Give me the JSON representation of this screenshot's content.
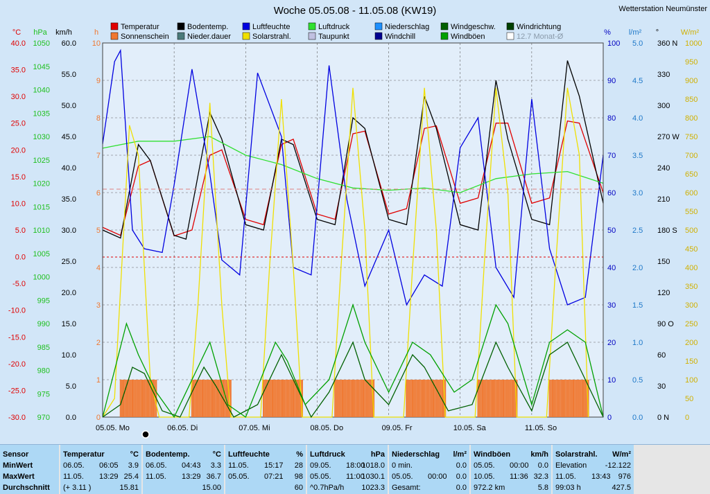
{
  "title": "Woche 05.05.08 - 11.05.08 (KW19)",
  "station": "Wetterstation Neumünster",
  "legend": [
    {
      "label": "Temperatur",
      "color": "#e00000"
    },
    {
      "label": "Sonnenschein",
      "color": "#f07830"
    },
    {
      "label": "Bodentemp.",
      "color": "#000000"
    },
    {
      "label": "Nieder.dauer",
      "color": "#4a7a7a"
    },
    {
      "label": "Luftfeuchte",
      "color": "#0000e0"
    },
    {
      "label": "Solarstrahl.",
      "color": "#f0e000"
    },
    {
      "label": "Luftdruck",
      "color": "#30e030"
    },
    {
      "label": "Taupunkt",
      "color": "#c0c0e0"
    },
    {
      "label": "Niederschlag",
      "color": "#1e90ff"
    },
    {
      "label": "Windchill",
      "color": "#000090"
    },
    {
      "label": "Windgeschw.",
      "color": "#006000"
    },
    {
      "label": "Windböen",
      "color": "#00a000"
    },
    {
      "label": "Windrichtung",
      "color": "#004000"
    },
    {
      "label": "12.7 Monat-Ø",
      "color": "#ffffff"
    }
  ],
  "axes": {
    "temp": {
      "unit": "°C",
      "color": "#e00000",
      "ticks": [
        "40.0",
        "35.0",
        "30.0",
        "25.0",
        "20.0",
        "15.0",
        "10.0",
        "5.0",
        "0.0",
        "-5.0",
        "-10.0",
        "-15.0",
        "-20.0",
        "-25.0",
        "-30.0"
      ]
    },
    "press": {
      "unit": "hPa",
      "color": "#20c020",
      "ticks": [
        "1050",
        "1045",
        "1040",
        "1035",
        "1030",
        "1025",
        "1020",
        "1015",
        "1010",
        "1005",
        "1000",
        "995",
        "990",
        "985",
        "980",
        "975",
        "970"
      ]
    },
    "wind": {
      "unit": "km/h",
      "color": "#000000",
      "ticks": [
        "60.0",
        "55.0",
        "50.0",
        "45.0",
        "40.0",
        "35.0",
        "30.0",
        "25.0",
        "20.0",
        "15.0",
        "10.0",
        "5.0",
        "0.0"
      ]
    },
    "hours": {
      "unit": "h",
      "color": "#f07830",
      "ticks": [
        "10",
        "9",
        "8",
        "7",
        "6",
        "5",
        "4",
        "3",
        "2",
        "1",
        "0"
      ]
    },
    "humidity": {
      "unit": "%",
      "color": "#0000c0",
      "ticks": [
        "100",
        "90",
        "80",
        "70",
        "60",
        "50",
        "40",
        "30",
        "20",
        "10",
        "0"
      ]
    },
    "rain": {
      "unit": "l/m²",
      "color": "#1e78c8",
      "ticks": [
        "5.0",
        "4.5",
        "4.0",
        "3.5",
        "3.0",
        "2.5",
        "2.0",
        "1.5",
        "1.0",
        "0.5",
        "0.0"
      ]
    },
    "direction": {
      "unit": "°",
      "color": "#000000",
      "ticks": [
        "360 N",
        "330",
        "300",
        "270 W",
        "240",
        "210",
        "180 S",
        "150",
        "120",
        "90 O",
        "60",
        "30",
        "0 N"
      ]
    },
    "solar": {
      "unit": "W/m²",
      "color": "#d0b000",
      "ticks": [
        "1000",
        "950",
        "900",
        "850",
        "800",
        "750",
        "700",
        "650",
        "600",
        "550",
        "500",
        "450",
        "400",
        "350",
        "300",
        "250",
        "200",
        "150",
        "100",
        "50",
        "0"
      ]
    }
  },
  "days": [
    "05.05.  Mo",
    "06.05.  Di",
    "07.05.  Mi",
    "08.05.  Do",
    "09.05.  Fr",
    "10.05.  Sa",
    "11.05.  So"
  ],
  "chart_data": {
    "type": "line",
    "title": "Woche 05.05.08 - 11.05.08 (KW19)",
    "x_unit": "hours since 05.05. 00:00",
    "series": [
      {
        "name": "Temperatur",
        "unit": "°C",
        "points": [
          [
            0,
            5.5
          ],
          [
            6,
            4
          ],
          [
            12,
            17
          ],
          [
            16,
            18
          ],
          [
            24,
            3.9
          ],
          [
            30,
            5
          ],
          [
            36,
            19
          ],
          [
            40,
            20
          ],
          [
            48,
            7
          ],
          [
            54,
            6
          ],
          [
            60,
            21
          ],
          [
            64,
            22
          ],
          [
            72,
            8
          ],
          [
            78,
            7
          ],
          [
            84,
            23
          ],
          [
            88,
            23.5
          ],
          [
            96,
            8
          ],
          [
            102,
            9
          ],
          [
            108,
            24
          ],
          [
            112,
            24.5
          ],
          [
            120,
            10
          ],
          [
            126,
            11
          ],
          [
            132,
            25
          ],
          [
            136,
            25
          ],
          [
            144,
            10
          ],
          [
            150,
            11
          ],
          [
            156,
            25.4
          ],
          [
            160,
            25
          ],
          [
            168,
            12
          ]
        ]
      },
      {
        "name": "Bodentemp.",
        "unit": "°C",
        "points": [
          [
            0,
            5
          ],
          [
            6,
            3.5
          ],
          [
            12,
            21
          ],
          [
            16,
            18
          ],
          [
            24,
            4
          ],
          [
            28,
            3.3
          ],
          [
            36,
            27
          ],
          [
            40,
            22
          ],
          [
            48,
            6
          ],
          [
            54,
            5
          ],
          [
            60,
            22
          ],
          [
            64,
            21
          ],
          [
            72,
            7
          ],
          [
            78,
            6
          ],
          [
            84,
            26
          ],
          [
            88,
            24
          ],
          [
            96,
            7
          ],
          [
            102,
            6
          ],
          [
            108,
            30
          ],
          [
            112,
            24
          ],
          [
            120,
            6
          ],
          [
            126,
            5
          ],
          [
            132,
            33
          ],
          [
            136,
            22
          ],
          [
            144,
            7
          ],
          [
            150,
            6
          ],
          [
            156,
            36.7
          ],
          [
            160,
            30
          ],
          [
            168,
            10
          ]
        ]
      },
      {
        "name": "Luftdruck",
        "unit": "hPa",
        "points": [
          [
            0,
            1027.5
          ],
          [
            12,
            1029
          ],
          [
            24,
            1029
          ],
          [
            36,
            1030
          ],
          [
            48,
            1026
          ],
          [
            60,
            1024
          ],
          [
            72,
            1021
          ],
          [
            84,
            1019
          ],
          [
            96,
            1018.5
          ],
          [
            108,
            1019
          ],
          [
            120,
            1018
          ],
          [
            132,
            1021
          ],
          [
            144,
            1022
          ],
          [
            156,
            1022.5
          ],
          [
            168,
            1020
          ]
        ]
      },
      {
        "name": "Luftfeuchte",
        "unit": "%",
        "points": [
          [
            0,
            73
          ],
          [
            4,
            95
          ],
          [
            6,
            98
          ],
          [
            10,
            50
          ],
          [
            14,
            45
          ],
          [
            20,
            44
          ],
          [
            24,
            62
          ],
          [
            30,
            93
          ],
          [
            36,
            65
          ],
          [
            40,
            42
          ],
          [
            46,
            38
          ],
          [
            52,
            92
          ],
          [
            60,
            75
          ],
          [
            64,
            40
          ],
          [
            70,
            38
          ],
          [
            76,
            94
          ],
          [
            82,
            58
          ],
          [
            88,
            35
          ],
          [
            96,
            50
          ],
          [
            102,
            30
          ],
          [
            108,
            38
          ],
          [
            114,
            35
          ],
          [
            120,
            72
          ],
          [
            126,
            80
          ],
          [
            132,
            40
          ],
          [
            138,
            32
          ],
          [
            144,
            85
          ],
          [
            150,
            45
          ],
          [
            156,
            30
          ],
          [
            162,
            32
          ],
          [
            168,
            70
          ]
        ]
      },
      {
        "name": "Solarstrahl.",
        "unit": "W/m²",
        "points": [
          [
            0,
            0
          ],
          [
            4,
            50
          ],
          [
            9,
            780
          ],
          [
            12,
            700
          ],
          [
            16,
            100
          ],
          [
            19,
            0
          ],
          [
            29,
            0
          ],
          [
            32,
            300
          ],
          [
            36,
            840
          ],
          [
            40,
            300
          ],
          [
            43,
            0
          ],
          [
            53,
            0
          ],
          [
            56,
            400
          ],
          [
            60,
            850
          ],
          [
            64,
            400
          ],
          [
            67,
            0
          ],
          [
            77,
            0
          ],
          [
            80,
            400
          ],
          [
            84,
            880
          ],
          [
            88,
            500
          ],
          [
            91,
            0
          ],
          [
            101,
            0
          ],
          [
            104,
            400
          ],
          [
            108,
            880
          ],
          [
            112,
            500
          ],
          [
            115,
            0
          ],
          [
            125,
            0
          ],
          [
            128,
            400
          ],
          [
            132,
            880
          ],
          [
            136,
            600
          ],
          [
            139,
            0
          ],
          [
            149,
            0
          ],
          [
            152,
            400
          ],
          [
            156,
            880
          ],
          [
            160,
            700
          ],
          [
            163,
            0
          ]
        ]
      },
      {
        "name": "Windgeschw.",
        "unit": "km/h",
        "points": [
          [
            0,
            0
          ],
          [
            6,
            2
          ],
          [
            10,
            8
          ],
          [
            14,
            7
          ],
          [
            20,
            1
          ],
          [
            26,
            0
          ],
          [
            34,
            8
          ],
          [
            38,
            5
          ],
          [
            44,
            0
          ],
          [
            52,
            2
          ],
          [
            60,
            10
          ],
          [
            64,
            6
          ],
          [
            70,
            0
          ],
          [
            76,
            4
          ],
          [
            84,
            12
          ],
          [
            88,
            6
          ],
          [
            96,
            2
          ],
          [
            104,
            10
          ],
          [
            108,
            8
          ],
          [
            116,
            1
          ],
          [
            124,
            2
          ],
          [
            132,
            12
          ],
          [
            136,
            8
          ],
          [
            144,
            1
          ],
          [
            150,
            10
          ],
          [
            156,
            12
          ],
          [
            160,
            8
          ],
          [
            168,
            0
          ]
        ]
      },
      {
        "name": "Windböen",
        "unit": "km/h",
        "points": [
          [
            0,
            0
          ],
          [
            8,
            15
          ],
          [
            12,
            10
          ],
          [
            18,
            4
          ],
          [
            24,
            0
          ],
          [
            32,
            8
          ],
          [
            36,
            12
          ],
          [
            42,
            2
          ],
          [
            48,
            0
          ],
          [
            58,
            12
          ],
          [
            62,
            9
          ],
          [
            68,
            2
          ],
          [
            76,
            6
          ],
          [
            84,
            18
          ],
          [
            88,
            12
          ],
          [
            96,
            4
          ],
          [
            104,
            12
          ],
          [
            110,
            10
          ],
          [
            118,
            4
          ],
          [
            124,
            6
          ],
          [
            132,
            18
          ],
          [
            136,
            15
          ],
          [
            144,
            2
          ],
          [
            150,
            12
          ],
          [
            156,
            14
          ],
          [
            162,
            12
          ],
          [
            168,
            0
          ]
        ]
      }
    ],
    "sunshine": {
      "name": "Sonnenschein",
      "unit": "h",
      "days_hours": [
        [
          6,
          18
        ],
        [
          30,
          43
        ],
        [
          54,
          67
        ],
        [
          78,
          91
        ],
        [
          102,
          115
        ],
        [
          126,
          139
        ],
        [
          150,
          163
        ]
      ],
      "value": 1
    }
  },
  "stats": {
    "columns": [
      {
        "key": "sensor",
        "header": "Sensor",
        "unit": "",
        "rows": [
          [
            "MinWert",
            "",
            ""
          ],
          [
            "MaxWert",
            "",
            ""
          ],
          [
            "Durchschnitt",
            "",
            ""
          ]
        ]
      },
      {
        "key": "temp",
        "header": "Temperatur",
        "unit": "°C",
        "rows": [
          [
            "06.05.",
            "06:05",
            "3.9"
          ],
          [
            "11.05.",
            "13:29",
            "25.4"
          ],
          [
            "(+ 3.11 )",
            "",
            "15.81"
          ]
        ]
      },
      {
        "key": "soil",
        "header": "Bodentemp.",
        "unit": "°C",
        "rows": [
          [
            "06.05.",
            "04:43",
            "3.3"
          ],
          [
            "11.05.",
            "13:29",
            "36.7"
          ],
          [
            "",
            "",
            "15.00"
          ]
        ]
      },
      {
        "key": "hum",
        "header": "Luftfeuchte",
        "unit": "%",
        "rows": [
          [
            "11.05.",
            "15:17",
            "28"
          ],
          [
            "05.05.",
            "07:21",
            "98"
          ],
          [
            "",
            "",
            "60"
          ]
        ]
      },
      {
        "key": "press",
        "header": "Luftdruck",
        "unit": "hPa",
        "rows": [
          [
            "09.05.",
            "18:00",
            "1018.0"
          ],
          [
            "05.05.",
            "11:00",
            "1030.1"
          ],
          [
            "^0.7hPa/h",
            "",
            "1023.3"
          ]
        ]
      },
      {
        "key": "rain",
        "header": "Niederschlag",
        "unit": "l/m²",
        "rows": [
          [
            "0 min.",
            "",
            "0.0"
          ],
          [
            "05.05.",
            "00:00",
            "0.0"
          ],
          [
            "Gesamt:",
            "",
            "0.0"
          ]
        ]
      },
      {
        "key": "gust",
        "header": "Windböen",
        "unit": "km/h",
        "rows": [
          [
            "05.05.",
            "00:00",
            "0.0"
          ],
          [
            "10.05.",
            "11:36",
            "32.3"
          ],
          [
            "972.2 km",
            "",
            "5.8"
          ]
        ]
      },
      {
        "key": "solar",
        "header": "Solarstrahl.",
        "unit": "W/m²",
        "rows": [
          [
            "Elevation",
            "",
            "-12.122"
          ],
          [
            "11.05.",
            "13:43",
            "976"
          ],
          [
            "99:03 h",
            "",
            "427.5"
          ]
        ]
      }
    ]
  }
}
